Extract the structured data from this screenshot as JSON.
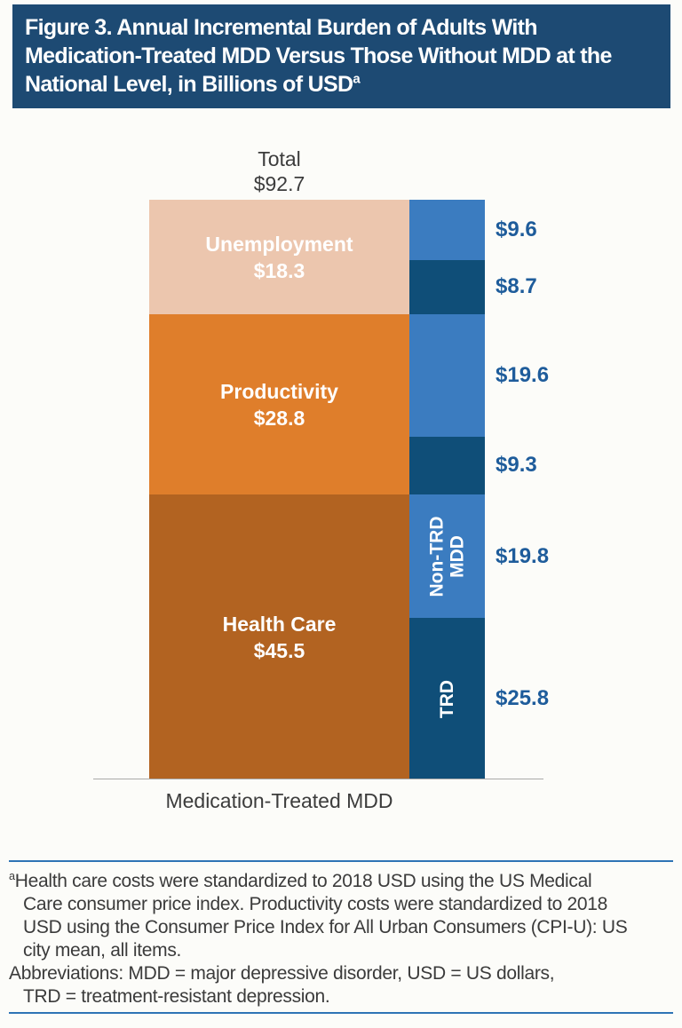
{
  "header": {
    "title": "Figure 3. Annual Incremental Burden of Adults With Medication-Treated MDD Versus Those Without MDD at the National Level, in Billions of USD",
    "superscript": "a"
  },
  "chart_data": {
    "type": "bar",
    "subtype": "stacked",
    "title": "Annual Incremental Burden of Adults With Medication-Treated MDD Versus Those Without MDD at the National Level, in Billions of USD",
    "unit": "billions of USD",
    "category": "Medication-Treated MDD",
    "total": {
      "label": "Total",
      "value": 92.7,
      "display": "$92.7"
    },
    "left_stack": {
      "name": "cost-components",
      "segments": [
        {
          "name": "Unemployment",
          "value": 18.3,
          "display": "$18.3",
          "color": "#ecc6ae"
        },
        {
          "name": "Productivity",
          "value": 28.8,
          "display": "$28.8",
          "color": "#df7e2b"
        },
        {
          "name": "Health Care",
          "value": 45.5,
          "display": "$45.5",
          "color": "#b26321"
        }
      ]
    },
    "right_stack": {
      "name": "trd-vs-nontrd-breakdown",
      "segments": [
        {
          "value": 9.6,
          "display": "$9.6",
          "color": "#3b7cc0",
          "group_lines": []
        },
        {
          "value": 8.7,
          "display": "$8.7",
          "color": "#0f4e78",
          "group_lines": []
        },
        {
          "value": 19.6,
          "display": "$19.6",
          "color": "#3b7cc0",
          "group_lines": []
        },
        {
          "value": 9.3,
          "display": "$9.3",
          "color": "#0f4e78",
          "group_lines": []
        },
        {
          "value": 19.8,
          "display": "$19.8",
          "color": "#3b7cc0",
          "group_lines": [
            "Non-TRD",
            "MDD"
          ]
        },
        {
          "value": 25.8,
          "display": "$25.8",
          "color": "#0f4e78",
          "group_lines": [
            "TRD"
          ]
        }
      ]
    },
    "legend": "none",
    "grid": "off"
  },
  "footnote": {
    "superscript": "a",
    "lines": [
      "Health care costs were standardized to 2018 USD using the US Medical",
      "Care consumer price index. Productivity costs were standardized to 2018",
      "USD using the Consumer Price Index for All Urban Consumers (CPI-U): US",
      "city mean, all items.",
      "Abbreviations: MDD = major depressive disorder, USD = US dollars,",
      "TRD = treatment-resistant depression."
    ]
  },
  "colors": {
    "page_bg": "#fcfcf9",
    "header_bg": "#1d4a73",
    "header_text": "#ffffff",
    "rule_blue": "#2e74b5",
    "value_text": "#1e5c9b",
    "axis_line": "#a9a9a9",
    "label_text": "#3c3c3c",
    "footnote_text": "#3b3b3b"
  }
}
